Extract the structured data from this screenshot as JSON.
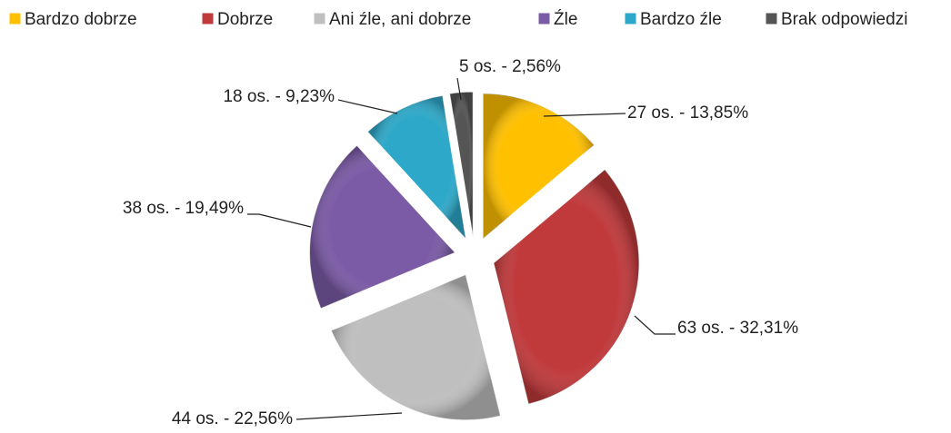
{
  "chart_data": {
    "type": "pie",
    "categories": [
      "Bardzo dobrze",
      "Dobrze",
      "Ani źle, ani dobrze",
      "Źle",
      "Bardzo źle",
      "Brak odpowiedzi"
    ],
    "values": [
      27,
      63,
      44,
      38,
      18,
      5
    ],
    "value_labels": [
      "27 os. - 13,85%",
      "63 os. - 32,31%",
      "44 os. - 22,56%",
      "38 os. - 19,49%",
      "18 os. - 9,23%",
      "5 os. - 2,56%"
    ],
    "colors": [
      "#FFC000",
      "#C0393B",
      "#BFBFBF",
      "#7B5AA6",
      "#2EA8C8",
      "#555555"
    ],
    "legend": "top"
  }
}
